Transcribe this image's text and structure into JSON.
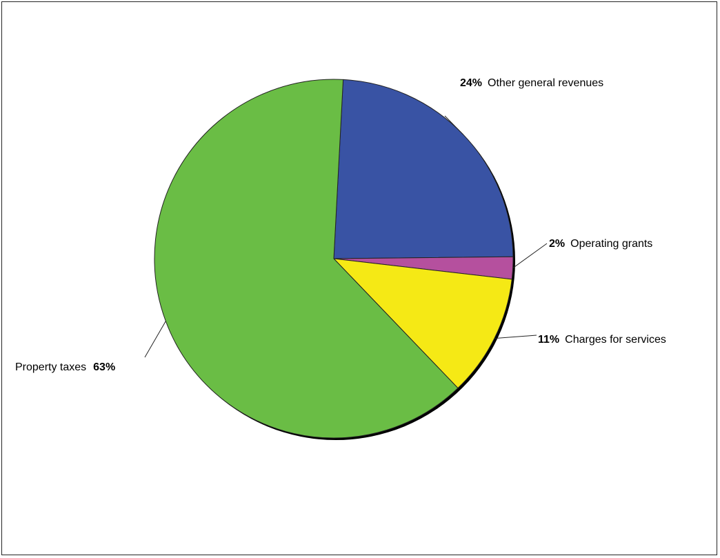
{
  "chart_data": {
    "type": "pie",
    "title": "",
    "slices": [
      {
        "label": "Other general revenues",
        "value": 24,
        "pct_label": "24%",
        "color": "#3953a4"
      },
      {
        "label": "Operating grants",
        "value": 2,
        "pct_label": "2%",
        "color": "#b5509e"
      },
      {
        "label": "Charges for services",
        "value": 11,
        "pct_label": "11%",
        "color": "#f5e915"
      },
      {
        "label": "Property taxes",
        "value": 63,
        "pct_label": "63%",
        "color": "#6abd45"
      }
    ]
  }
}
